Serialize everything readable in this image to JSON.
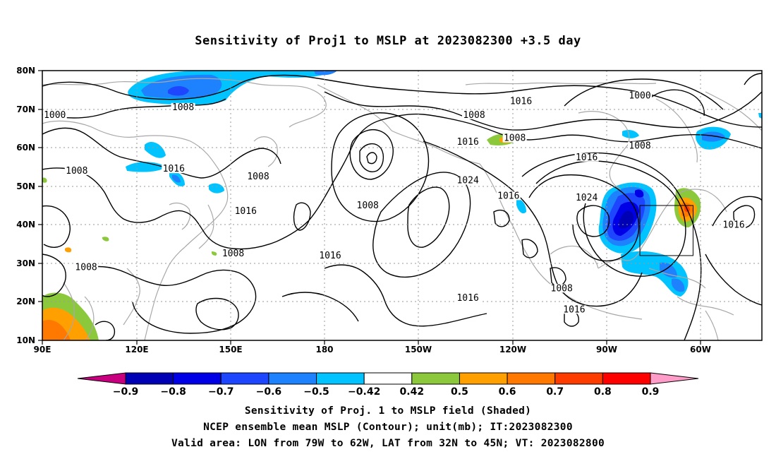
{
  "title": "Sensitivity of Proj1 to MSLP at 2023082300 +3.5 day",
  "map": {
    "lat_ticks": [
      "80N",
      "70N",
      "60N",
      "50N",
      "40N",
      "30N",
      "20N",
      "10N"
    ],
    "lon_ticks": [
      "90E",
      "120E",
      "150E",
      "180",
      "150W",
      "120W",
      "90W",
      "60W"
    ],
    "contour_labels": [
      {
        "text": "1000",
        "lon": 94,
        "lat": 68.5
      },
      {
        "text": "1008",
        "lon": 135,
        "lat": 70.5
      },
      {
        "text": "1016",
        "lon": 132,
        "lat": 54.5
      },
      {
        "text": "1008",
        "lon": 101,
        "lat": 54
      },
      {
        "text": "1008",
        "lon": 159,
        "lat": 52.5
      },
      {
        "text": "1016",
        "lon": 155,
        "lat": 43.5
      },
      {
        "text": "1008",
        "lon": 104,
        "lat": 29
      },
      {
        "text": "1008",
        "lon": 151,
        "lat": 32.5
      },
      {
        "text": "1016",
        "lon": 182,
        "lat": 32
      },
      {
        "text": "1008",
        "lon": 194,
        "lat": 45
      },
      {
        "text": "1008",
        "lon": 228,
        "lat": 68.5
      },
      {
        "text": "1016",
        "lon": 226,
        "lat": 61.5
      },
      {
        "text": "1024",
        "lon": 226,
        "lat": 51.5
      },
      {
        "text": "1016",
        "lon": 243,
        "lat": 72
      },
      {
        "text": "1008",
        "lon": 241,
        "lat": 62.5
      },
      {
        "text": "1016",
        "lon": 239,
        "lat": 47.5
      },
      {
        "text": "1016",
        "lon": 226,
        "lat": 21
      },
      {
        "text": "1000",
        "lon": 281,
        "lat": 73.5
      },
      {
        "text": "1008",
        "lon": 281,
        "lat": 60.5
      },
      {
        "text": "1016",
        "lon": 264,
        "lat": 57.5
      },
      {
        "text": "1024",
        "lon": 264,
        "lat": 47
      },
      {
        "text": "1008",
        "lon": 256,
        "lat": 23.5
      },
      {
        "text": "1016",
        "lon": 260,
        "lat": 18
      },
      {
        "text": "1016",
        "lon": 311,
        "lat": 40
      }
    ],
    "valid_area": {
      "lon_min": -79,
      "lon_max": -62,
      "lat_min": 32,
      "lat_max": 45
    }
  },
  "colorbar": {
    "levels": [
      "-0.9",
      "-0.8",
      "-0.7",
      "-0.6",
      "-0.5",
      "-0.42",
      "0.42",
      "0.5",
      "0.6",
      "0.7",
      "0.8",
      "0.9"
    ],
    "colors": [
      "#c8007f",
      "#0000b4",
      "#0000e6",
      "#1e46ff",
      "#1e82ff",
      "#00c3ff",
      "#ffffff",
      "#8cc83c",
      "#ffa000",
      "#ff7800",
      "#ff3c00",
      "#ff0000",
      "#ff9cc8"
    ]
  },
  "captions": {
    "line1": "Sensitivity of Proj. 1 to MSLP field (Shaded)",
    "line2": "NCEP ensemble mean MSLP (Contour); unit(mb); IT:2023082300",
    "line3": "Valid area: LON from 79W to 62W, LAT from 32N to 45N; VT: 2023082800"
  }
}
